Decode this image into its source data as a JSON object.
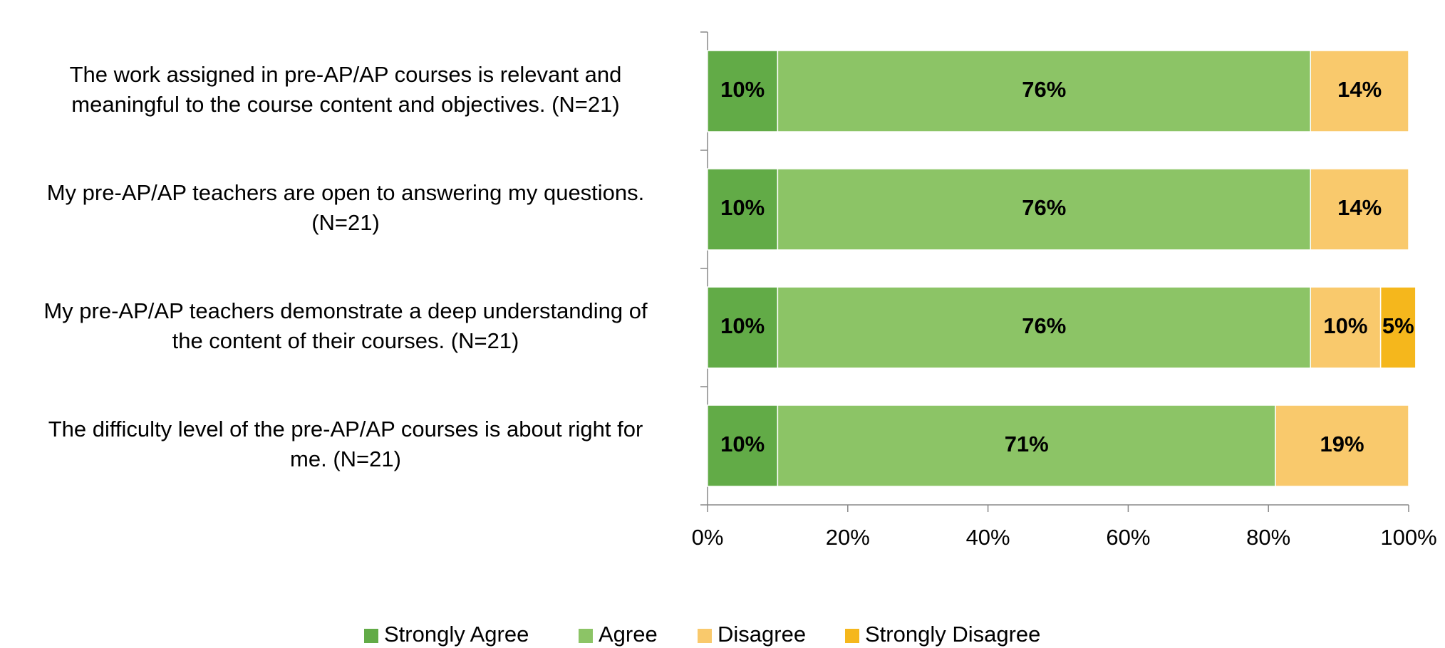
{
  "chart_data": {
    "type": "bar",
    "orientation": "horizontal",
    "stacked": true,
    "categories": [
      [
        "The work assigned in pre-AP/AP courses is relevant and",
        "meaningful to the course content and objectives. (N=21)"
      ],
      [
        "My pre-AP/AP teachers are open to answering my questions.",
        "(N=21)"
      ],
      [
        "My pre-AP/AP teachers demonstrate a deep understanding of",
        "the content of their courses. (N=21)"
      ],
      [
        "The difficulty level of the pre-AP/AP courses is about right for",
        "me. (N=21)"
      ]
    ],
    "series": [
      {
        "name": "Strongly Agree",
        "color": "#62ab47",
        "values": [
          10,
          10,
          10,
          10
        ],
        "value_labels": [
          "10%",
          "10%",
          "10%",
          "10%"
        ]
      },
      {
        "name": "Agree",
        "color": "#8cc466",
        "values": [
          76,
          76,
          76,
          71
        ],
        "value_labels": [
          "76%",
          "76%",
          "76%",
          "71%"
        ]
      },
      {
        "name": "Disagree",
        "color": "#f9c96c",
        "values": [
          14,
          14,
          10,
          19
        ],
        "value_labels": [
          "14%",
          "14%",
          "10%",
          "19%"
        ]
      },
      {
        "name": "Strongly Disagree",
        "color": "#f5b71c",
        "values": [
          null,
          null,
          5,
          null
        ],
        "value_labels": [
          null,
          null,
          "5%",
          null
        ]
      }
    ],
    "xlim": [
      0,
      100
    ],
    "xticks": [
      {
        "value": 0,
        "label": "0%"
      },
      {
        "value": 20,
        "label": "20%"
      },
      {
        "value": 40,
        "label": "40%"
      },
      {
        "value": 60,
        "label": "60%"
      },
      {
        "value": 80,
        "label": "80%"
      },
      {
        "value": 100,
        "label": "100%"
      }
    ],
    "legend": "bottom"
  }
}
